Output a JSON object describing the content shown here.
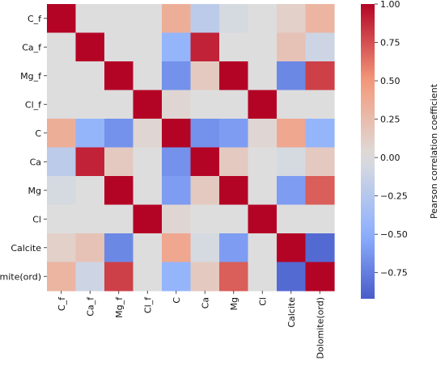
{
  "chart_data": {
    "type": "heatmap",
    "title": "",
    "xlabel": "",
    "ylabel": "",
    "rows": [
      "C_f",
      "Ca_f",
      "Mg_f",
      "Cl_f",
      "C",
      "Ca",
      "Mg",
      "Cl",
      "Calcite",
      "Dolomite(ord)"
    ],
    "columns": [
      "C_f",
      "Ca_f",
      "Mg_f",
      "Cl_f",
      "C",
      "Ca",
      "Mg",
      "Cl",
      "Calcite",
      "Dolomite(ord)"
    ],
    "values": [
      [
        1.0,
        0.0,
        0.0,
        0.0,
        0.35,
        -0.2,
        -0.05,
        0.0,
        0.1,
        0.3
      ],
      [
        0.0,
        1.0,
        0.0,
        0.0,
        -0.45,
        0.9,
        0.0,
        0.0,
        0.2,
        -0.1
      ],
      [
        0.0,
        0.0,
        1.0,
        0.0,
        -0.65,
        0.15,
        1.0,
        0.0,
        -0.7,
        0.8
      ],
      [
        0.0,
        0.0,
        0.0,
        1.0,
        0.05,
        0.0,
        0.0,
        1.0,
        0.0,
        0.0
      ],
      [
        0.35,
        -0.45,
        -0.65,
        0.05,
        1.0,
        -0.65,
        -0.6,
        0.05,
        0.4,
        -0.45
      ],
      [
        -0.2,
        0.9,
        0.15,
        0.0,
        -0.65,
        1.0,
        0.15,
        0.0,
        -0.05,
        0.15
      ],
      [
        -0.05,
        0.0,
        1.0,
        0.0,
        -0.6,
        0.15,
        1.0,
        0.0,
        -0.6,
        0.7
      ],
      [
        0.0,
        0.0,
        0.0,
        1.0,
        0.05,
        0.0,
        0.0,
        1.0,
        0.0,
        0.0
      ],
      [
        0.1,
        0.2,
        -0.7,
        0.0,
        0.4,
        -0.05,
        -0.6,
        0.0,
        1.0,
        -0.85
      ],
      [
        0.3,
        -0.1,
        0.8,
        0.0,
        -0.45,
        0.15,
        0.7,
        0.0,
        -0.85,
        1.0
      ]
    ],
    "colorbar": {
      "label": "Pearson correlation coefficient",
      "ticks": [
        1.0,
        0.75,
        0.5,
        0.25,
        0.0,
        -0.25,
        -0.5,
        -0.75
      ],
      "tick_labels": [
        "1.00",
        "0.75",
        "0.50",
        "0.25",
        "0.00",
        "−0.25",
        "−0.50",
        "−0.75"
      ],
      "range": [
        -0.92,
        1.0
      ],
      "colormap": "coolwarm"
    }
  }
}
